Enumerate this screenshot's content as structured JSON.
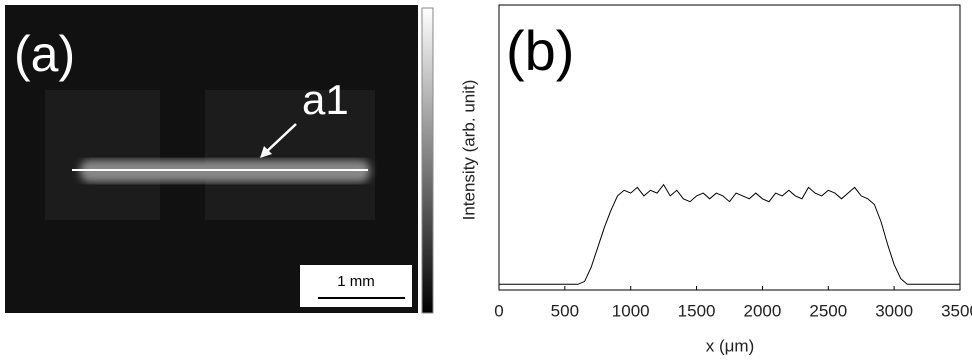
{
  "panel_a": {
    "label": "(a)",
    "annotation": "a1",
    "scale_bar": "1 mm"
  },
  "chart_data": {
    "type": "line",
    "label": "(b)",
    "y_label": "Intensity (arb. unit)",
    "x_label": "x (μm)",
    "color": "#000000",
    "x": [
      0,
      50,
      100,
      150,
      200,
      250,
      300,
      350,
      400,
      450,
      500,
      550,
      600,
      650,
      700,
      750,
      800,
      850,
      900,
      950,
      1000,
      1050,
      1100,
      1150,
      1200,
      1250,
      1300,
      1350,
      1400,
      1450,
      1500,
      1550,
      1600,
      1650,
      1700,
      1750,
      1800,
      1850,
      1900,
      1950,
      2000,
      2050,
      2100,
      2150,
      2200,
      2250,
      2300,
      2350,
      2400,
      2450,
      2500,
      2550,
      2600,
      2650,
      2700,
      2750,
      2800,
      2850,
      2900,
      2950,
      3000,
      3050,
      3100,
      3150,
      3200,
      3250,
      3300,
      3350,
      3400,
      3450,
      3500
    ],
    "values": [
      0.02,
      0.02,
      0.02,
      0.02,
      0.02,
      0.02,
      0.02,
      0.02,
      0.02,
      0.02,
      0.02,
      0.02,
      0.02,
      0.03,
      0.08,
      0.15,
      0.22,
      0.28,
      0.33,
      0.35,
      0.34,
      0.36,
      0.33,
      0.35,
      0.34,
      0.37,
      0.33,
      0.35,
      0.32,
      0.31,
      0.33,
      0.34,
      0.32,
      0.34,
      0.33,
      0.31,
      0.34,
      0.33,
      0.32,
      0.34,
      0.32,
      0.31,
      0.34,
      0.33,
      0.35,
      0.33,
      0.32,
      0.36,
      0.34,
      0.33,
      0.35,
      0.34,
      0.32,
      0.34,
      0.36,
      0.33,
      0.32,
      0.3,
      0.24,
      0.16,
      0.09,
      0.04,
      0.02,
      0.02,
      0.02,
      0.02,
      0.02,
      0.02,
      0.02,
      0.02,
      0.02
    ],
    "xlim": [
      0,
      3500
    ],
    "xticks": [
      0,
      500,
      1000,
      1500,
      2000,
      2500,
      3000,
      3500
    ],
    "ylim": [
      0,
      1
    ]
  }
}
